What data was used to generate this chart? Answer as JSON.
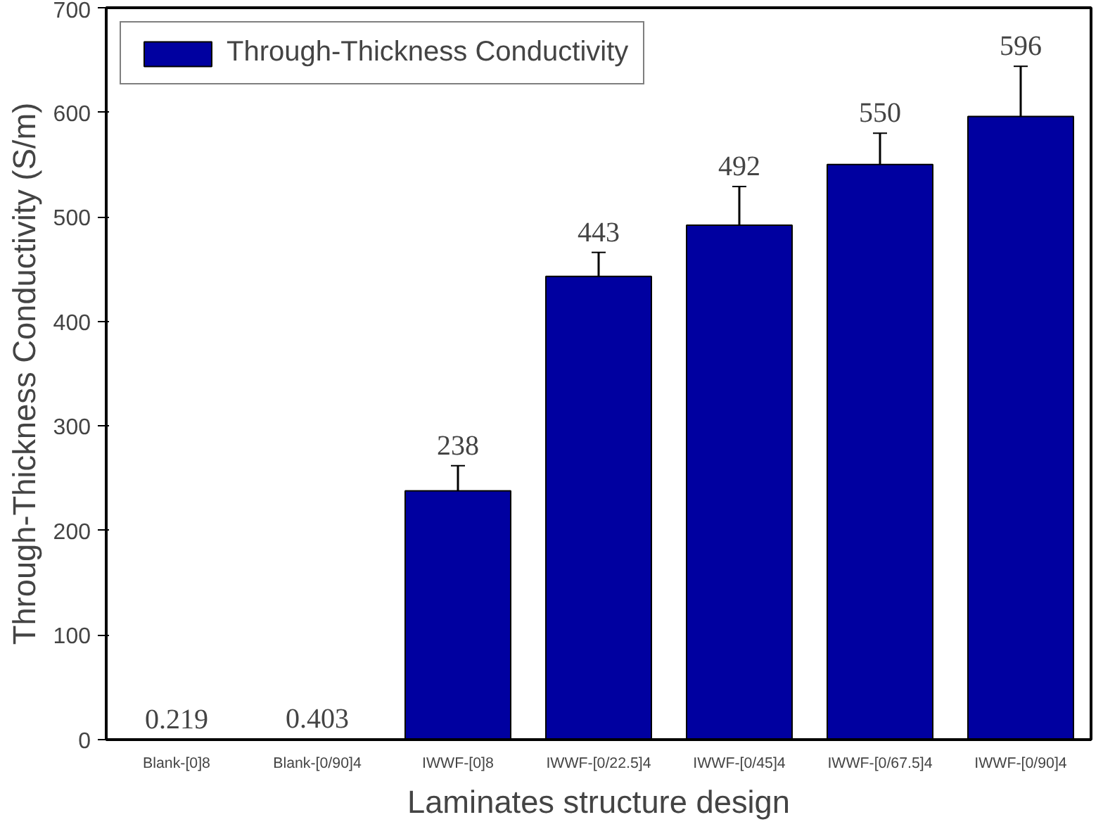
{
  "chart_data": {
    "type": "bar",
    "xlabel": "Laminates structure design",
    "ylabel": "Through-Thickness Conductivity (S/m)",
    "categories": [
      "Blank-[0]8",
      "Blank-[0/90]4",
      "IWWF-[0]8",
      "IWWF-[0/22.5]4",
      "IWWF-[0/45]4",
      "IWWF-[0/67.5]4",
      "IWWF-[0/90]4"
    ],
    "series": [
      {
        "name": "Through-Thickness Conductivity",
        "color": "#0000a0",
        "values": [
          0.219,
          0.403,
          238,
          443,
          492,
          550,
          596
        ],
        "errors": [
          null,
          null,
          24,
          23,
          37,
          30,
          48
        ]
      }
    ],
    "data_labels": true,
    "ylim": [
      0,
      700
    ],
    "yticks": [
      0,
      100,
      200,
      300,
      400,
      500,
      600,
      700
    ],
    "grid": false,
    "legend": "top left"
  }
}
